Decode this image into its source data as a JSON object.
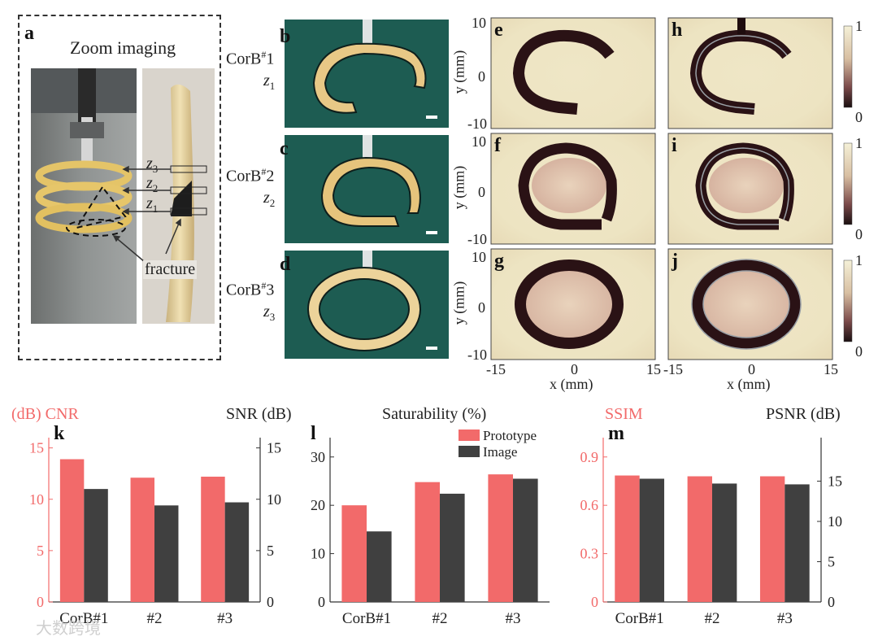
{
  "panel_a": {
    "label": "a",
    "title": "Zoom imaging",
    "z_labels": [
      "z3",
      "z2",
      "z1"
    ],
    "fracture_label": "fracture"
  },
  "photos": [
    {
      "label": "b",
      "corb": "CorB#1",
      "z": "z1"
    },
    {
      "label": "c",
      "corb": "CorB#2",
      "z": "z2"
    },
    {
      "label": "d",
      "corb": "CorB#3",
      "z": "z3"
    }
  ],
  "images": {
    "rows": [
      [
        "e",
        "h"
      ],
      [
        "f",
        "i"
      ],
      [
        "g",
        "j"
      ]
    ],
    "y_label": "y (mm)",
    "x_label": "x (mm)",
    "y_ticks": [
      "10",
      "0",
      "-10"
    ],
    "x_ticks": [
      "-15",
      "0",
      "15"
    ],
    "colorbar_ticks": [
      "1",
      "0"
    ]
  },
  "chart_data": [
    {
      "type": "bar",
      "panel": "k",
      "left_label": "(dB) CNR",
      "right_label": "SNR (dB)",
      "categories": [
        "CorB#1",
        "#2",
        "#3"
      ],
      "series": [
        {
          "name": "CNR",
          "axis": "left",
          "values": [
            13.9,
            12.1,
            12.2
          ]
        },
        {
          "name": "SNR",
          "axis": "right",
          "values": [
            11.0,
            9.4,
            9.7
          ]
        }
      ],
      "ylim_left": [
        0,
        16
      ],
      "ylim_right": [
        0,
        16
      ],
      "yticks_left": [
        0,
        5,
        10,
        15
      ],
      "yticks_right": [
        0,
        5,
        10,
        15
      ],
      "colors": {
        "left": "#f26a6a",
        "right": "#404040"
      }
    },
    {
      "type": "bar",
      "panel": "l",
      "title": "Saturability (%)",
      "categories": [
        "CorB#1",
        "#2",
        "#3"
      ],
      "series": [
        {
          "name": "Prototype",
          "values": [
            20.0,
            24.8,
            26.4
          ]
        },
        {
          "name": "Image",
          "values": [
            14.6,
            22.4,
            25.5
          ]
        }
      ],
      "ylim": [
        0,
        34
      ],
      "yticks": [
        0,
        10,
        20,
        30
      ],
      "legend": "top-right",
      "colors": {
        "Prototype": "#f26a6a",
        "Image": "#404040"
      }
    },
    {
      "type": "bar",
      "panel": "m",
      "left_label": "SSIM",
      "right_label": "PSNR (dB)",
      "categories": [
        "CorB#1",
        "#2",
        "#3"
      ],
      "series": [
        {
          "name": "SSIM",
          "axis": "left",
          "values": [
            0.785,
            0.78,
            0.78
          ]
        },
        {
          "name": "PSNR",
          "axis": "right",
          "values": [
            15.3,
            14.7,
            14.6
          ]
        }
      ],
      "ylim_left": [
        0,
        1.02
      ],
      "ylim_right": [
        0,
        20.4
      ],
      "yticks_left": [
        0,
        0.3,
        0.6,
        0.9
      ],
      "yticks_right": [
        0,
        5,
        10,
        15
      ],
      "colors": {
        "left": "#f26a6a",
        "right": "#404040"
      }
    }
  ],
  "watermark": "大数跨境"
}
